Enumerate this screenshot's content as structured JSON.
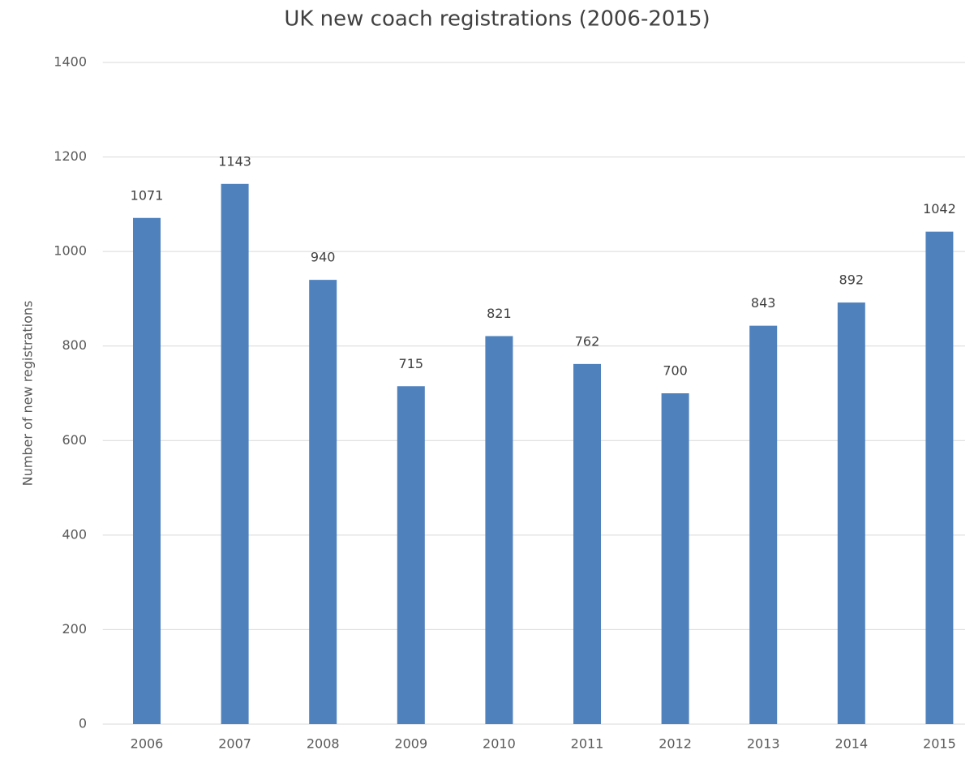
{
  "chart_data": {
    "type": "bar",
    "title": "UK new coach registrations (2006-2015)",
    "y_label": "Number of new registrations",
    "categories": [
      "2006",
      "2007",
      "2008",
      "2009",
      "2010",
      "2011",
      "2012",
      "2013",
      "2014",
      "2015"
    ],
    "values": [
      1071,
      1143,
      940,
      715,
      821,
      762,
      700,
      843,
      892,
      1042
    ],
    "color": "#4f81bd",
    "ylim": [
      0,
      1400
    ],
    "yticks": [
      0,
      200,
      400,
      600,
      800,
      1000,
      1200,
      1400
    ],
    "grid": true
  }
}
